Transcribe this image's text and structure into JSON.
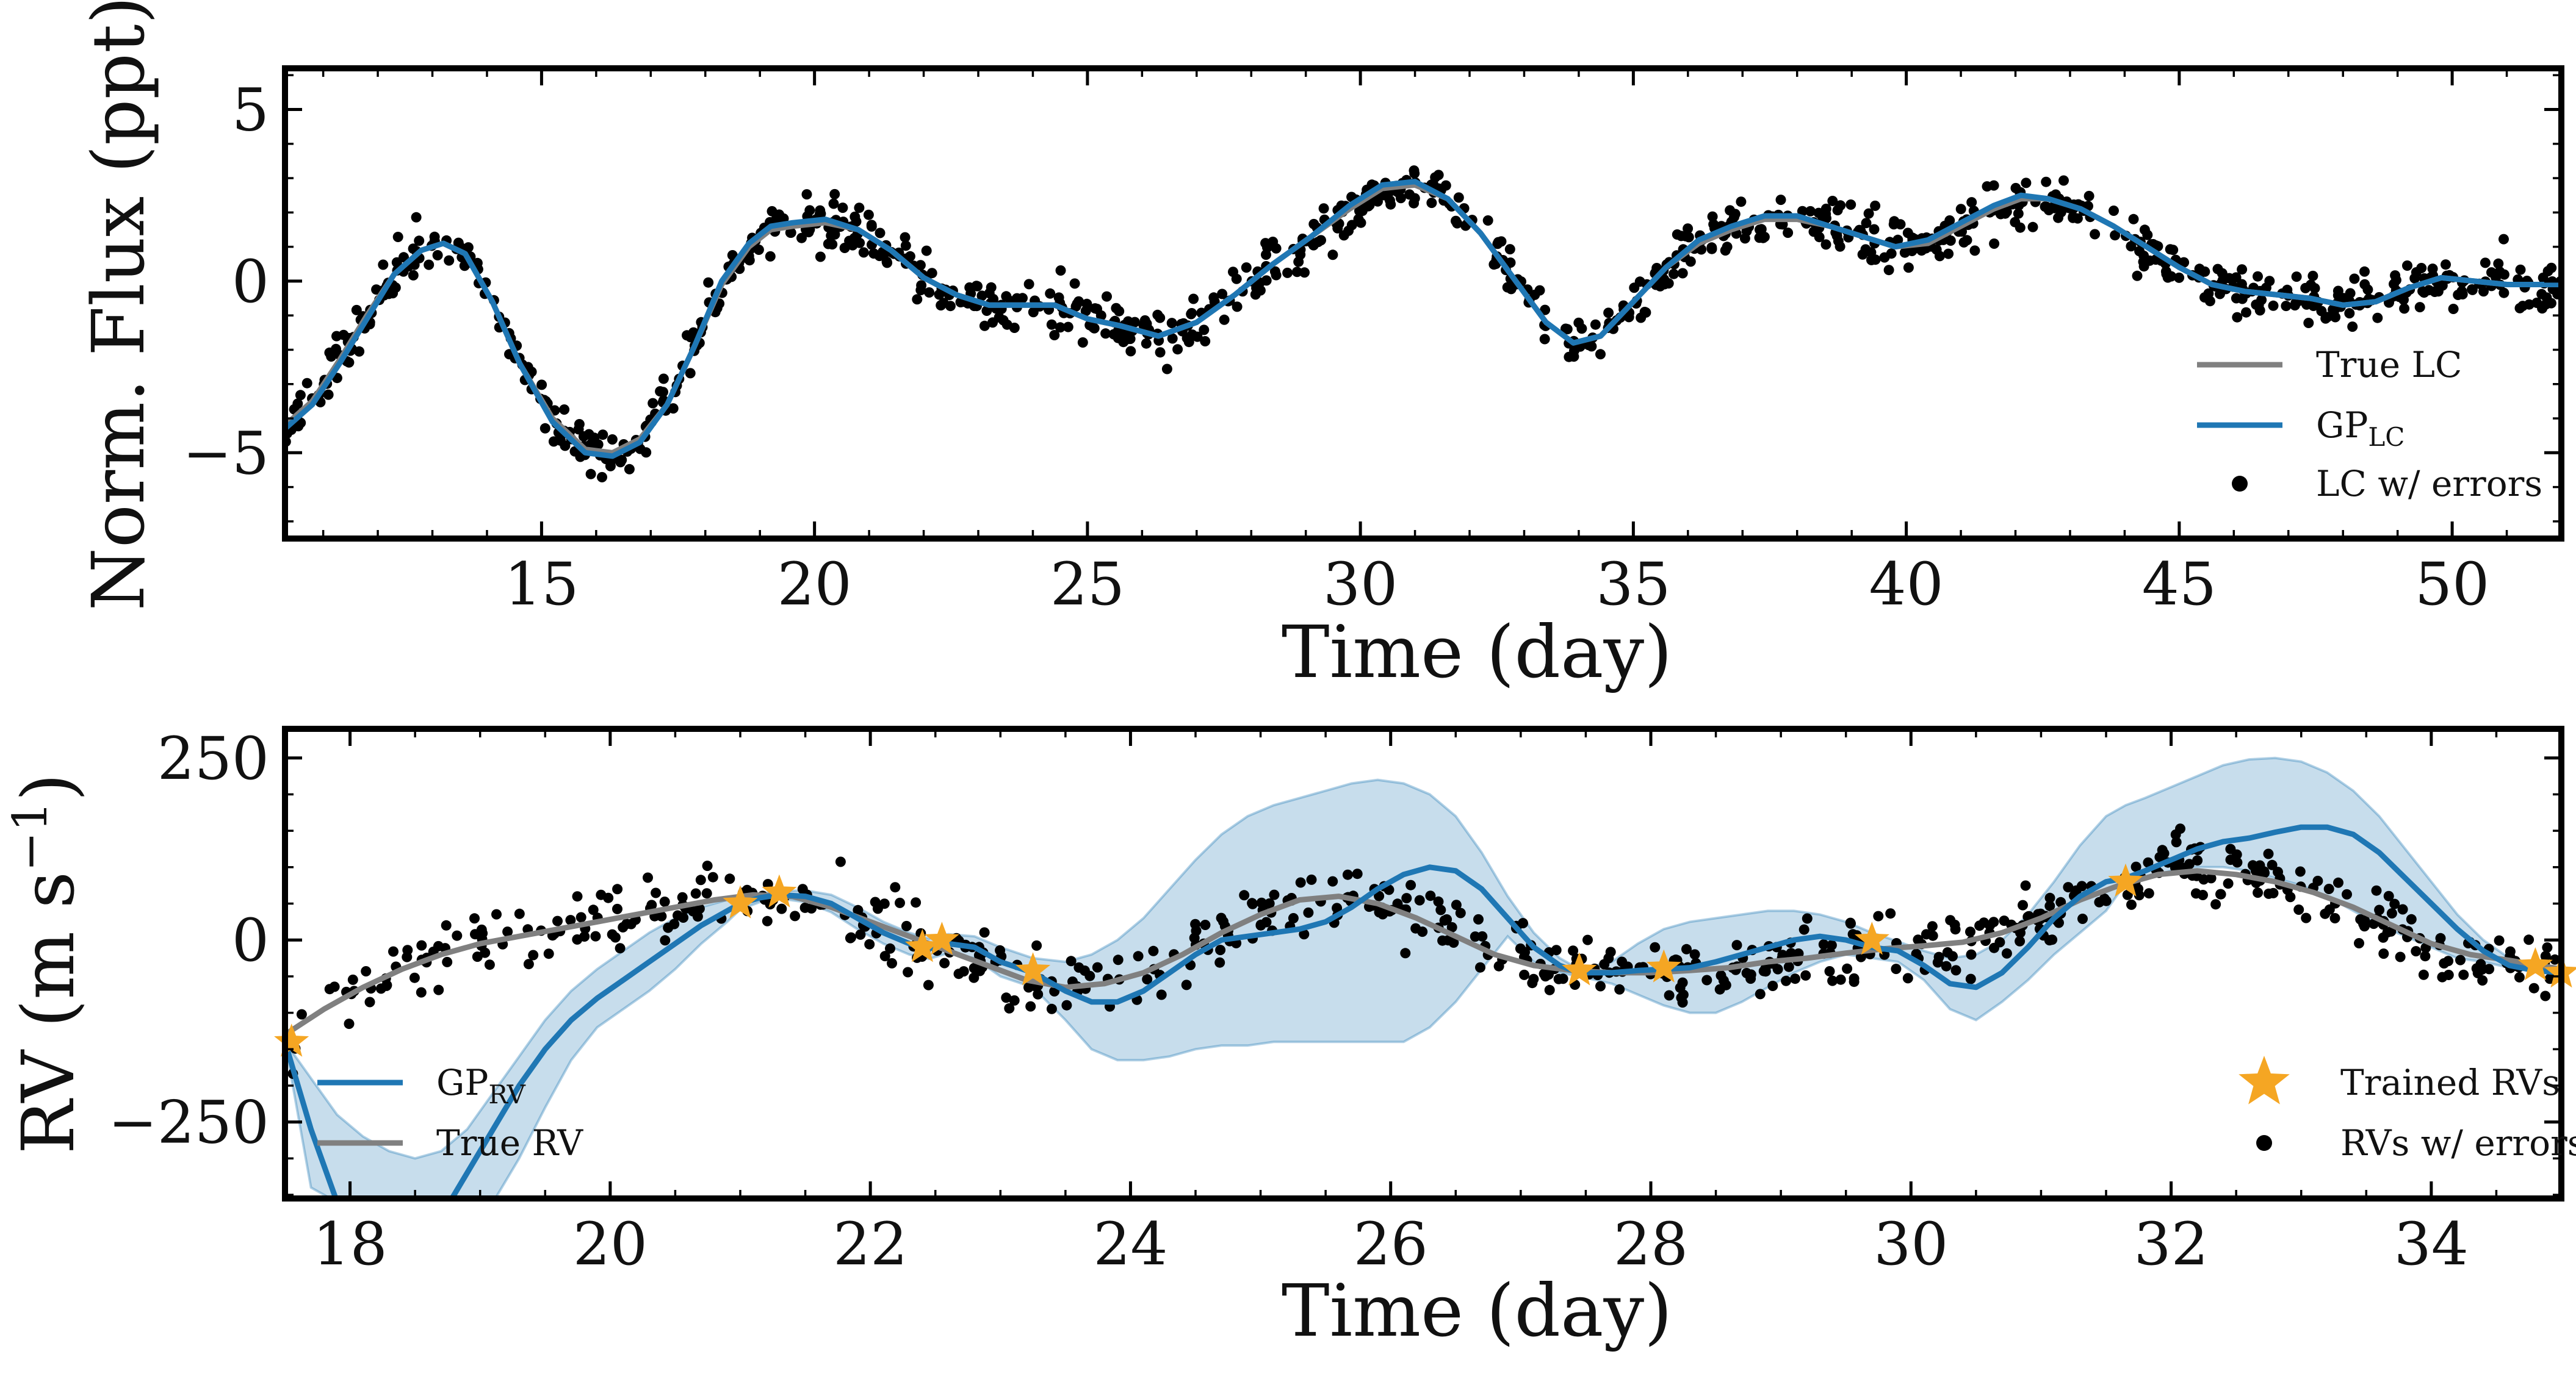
{
  "chart_data": [
    {
      "type": "line",
      "xlabel": "Time (day)",
      "ylabel": "Norm. Flux (ppt)",
      "xlim": [
        10.3,
        52
      ],
      "ylim": [
        -7.5,
        6.2
      ],
      "xticks": [
        "15",
        "20",
        "25",
        "30",
        "35",
        "40",
        "45",
        "50"
      ],
      "yticks": [
        "−5",
        "0",
        "5"
      ],
      "grid": false,
      "legend": "lower-right",
      "series": [
        {
          "name": "True LC",
          "color": "#808080",
          "x": [
            10.3,
            10.8,
            11.3,
            11.8,
            12.3,
            12.8,
            13.2,
            13.6,
            14.1,
            14.6,
            15.2,
            15.8,
            16.3,
            16.8,
            17.3,
            17.8,
            18.3,
            18.8,
            19.2,
            19.6,
            20.2,
            20.8,
            21.4,
            22.0,
            22.6,
            23.2,
            23.8,
            24.4,
            25.0,
            25.6,
            26.3,
            27.0,
            27.7,
            28.4,
            29.1,
            29.8,
            30.4,
            31.0,
            31.6,
            32.2,
            32.8,
            33.4,
            33.9,
            34.4,
            35.0,
            35.6,
            36.2,
            36.8,
            37.4,
            38.0,
            38.6,
            39.2,
            39.8,
            40.4,
            41.0,
            41.6,
            42.1,
            42.6,
            43.2,
            43.8,
            44.4,
            45.0,
            45.6,
            46.2,
            46.8,
            47.4,
            48.0,
            48.6,
            49.2,
            49.8,
            50.4,
            51.0,
            51.6,
            52.0
          ],
          "y": [
            -4.2,
            -3.5,
            -2.3,
            -1.0,
            0.2,
            0.9,
            1.1,
            0.8,
            -0.6,
            -2.4,
            -4.0,
            -4.9,
            -5.0,
            -4.6,
            -3.6,
            -1.9,
            -0.1,
            1.0,
            1.5,
            1.6,
            1.7,
            1.5,
            0.9,
            0.1,
            -0.4,
            -0.7,
            -0.7,
            -0.7,
            -1.1,
            -1.3,
            -1.6,
            -1.2,
            -0.4,
            0.5,
            1.3,
            2.1,
            2.7,
            2.8,
            2.4,
            1.4,
            0.1,
            -1.2,
            -1.8,
            -1.6,
            -0.6,
            0.4,
            1.1,
            1.5,
            1.8,
            1.8,
            1.6,
            1.3,
            1.0,
            1.1,
            1.6,
            2.1,
            2.4,
            2.4,
            2.1,
            1.6,
            1.0,
            0.4,
            -0.1,
            -0.3,
            -0.4,
            -0.5,
            -0.7,
            -0.6,
            -0.2,
            0.1,
            0.0,
            -0.1,
            -0.1,
            -0.1
          ]
        },
        {
          "name": "GPLC",
          "color": "#1f77b4",
          "x": [
            10.3,
            10.8,
            11.3,
            11.8,
            12.3,
            12.8,
            13.2,
            13.6,
            14.1,
            14.6,
            15.2,
            15.8,
            16.3,
            16.8,
            17.3,
            17.8,
            18.3,
            18.8,
            19.2,
            19.6,
            20.2,
            20.8,
            21.4,
            22.0,
            22.6,
            23.2,
            23.8,
            24.4,
            25.0,
            25.6,
            26.3,
            27.0,
            27.7,
            28.4,
            29.1,
            29.8,
            30.4,
            31.0,
            31.6,
            32.2,
            32.8,
            33.4,
            33.9,
            34.4,
            35.0,
            35.6,
            36.2,
            36.8,
            37.4,
            38.0,
            38.6,
            39.2,
            39.8,
            40.4,
            41.0,
            41.6,
            42.1,
            42.6,
            43.2,
            43.8,
            44.4,
            45.0,
            45.6,
            46.2,
            46.8,
            47.4,
            48.0,
            48.6,
            49.2,
            49.8,
            50.4,
            51.0,
            51.6,
            52.0
          ],
          "y": [
            -4.3,
            -3.6,
            -2.4,
            -1.1,
            0.2,
            0.9,
            1.1,
            0.8,
            -0.6,
            -2.4,
            -4.1,
            -5.0,
            -5.1,
            -4.7,
            -3.6,
            -1.9,
            0.0,
            1.1,
            1.6,
            1.7,
            1.8,
            1.5,
            0.9,
            0.1,
            -0.4,
            -0.7,
            -0.7,
            -0.7,
            -1.1,
            -1.3,
            -1.6,
            -1.2,
            -0.4,
            0.5,
            1.3,
            2.2,
            2.8,
            2.9,
            2.4,
            1.4,
            0.1,
            -1.2,
            -1.8,
            -1.6,
            -0.6,
            0.4,
            1.2,
            1.6,
            1.9,
            1.9,
            1.6,
            1.3,
            1.0,
            1.2,
            1.7,
            2.2,
            2.5,
            2.4,
            2.1,
            1.6,
            1.0,
            0.4,
            -0.1,
            -0.3,
            -0.4,
            -0.5,
            -0.7,
            -0.6,
            -0.2,
            0.1,
            0.0,
            -0.1,
            -0.1,
            -0.1
          ]
        },
        {
          "name": "LC w/ errors",
          "type": "scatter",
          "color": "#000000",
          "note": "dense scatter of ~1000 points following the true LC with ~0.35 ppt noise"
        }
      ],
      "legend_entries": [
        {
          "label": "True LC",
          "color": "#808080",
          "kind": "line"
        },
        {
          "label": "GP",
          "sub": "LC",
          "color": "#1f77b4",
          "kind": "line"
        },
        {
          "label": "LC w/ errors",
          "color": "#000000",
          "kind": "dot"
        }
      ]
    },
    {
      "type": "line",
      "xlabel": "Time (day)",
      "ylabel": "RV (m s",
      "ylabel_sup": "−1",
      "ylabel_end": ")",
      "xlim": [
        17.5,
        35.0
      ],
      "ylim": [
        -355,
        290
      ],
      "xticks": [
        "18",
        "20",
        "22",
        "24",
        "26",
        "28",
        "30",
        "32",
        "34"
      ],
      "yticks": [
        "−250",
        "0",
        "250"
      ],
      "grid": false,
      "legend": [
        "lower-left",
        "lower-right"
      ],
      "series": [
        {
          "name": "True RV",
          "color": "#808080",
          "x": [
            17.5,
            17.8,
            18.1,
            18.4,
            18.7,
            19.0,
            19.3,
            19.6,
            19.9,
            20.2,
            20.5,
            20.8,
            21.1,
            21.4,
            21.7,
            22.0,
            22.3,
            22.6,
            22.9,
            23.2,
            23.5,
            23.8,
            24.1,
            24.4,
            24.7,
            25.0,
            25.3,
            25.6,
            25.9,
            26.2,
            26.5,
            26.8,
            27.1,
            27.4,
            27.7,
            28.0,
            28.3,
            28.6,
            28.9,
            29.2,
            29.5,
            29.8,
            30.1,
            30.4,
            30.7,
            31.0,
            31.3,
            31.6,
            31.9,
            32.2,
            32.5,
            32.8,
            33.1,
            33.4,
            33.7,
            34.0,
            34.3,
            34.6,
            35.0
          ],
          "y": [
            -130,
            -95,
            -65,
            -40,
            -20,
            -5,
            5,
            15,
            25,
            35,
            45,
            55,
            62,
            60,
            45,
            25,
            5,
            -15,
            -35,
            -55,
            -65,
            -60,
            -45,
            -20,
            10,
            35,
            55,
            60,
            50,
            30,
            5,
            -20,
            -35,
            -42,
            -45,
            -45,
            -42,
            -38,
            -30,
            -25,
            -18,
            -12,
            -8,
            -3,
            10,
            30,
            55,
            75,
            90,
            95,
            90,
            80,
            65,
            45,
            20,
            -5,
            -20,
            -28,
            -40
          ]
        },
        {
          "name": "GPRV",
          "color": "#1f77b4",
          "x": [
            17.5,
            17.7,
            17.9,
            18.1,
            18.3,
            18.5,
            18.7,
            18.9,
            19.1,
            19.3,
            19.5,
            19.7,
            19.9,
            20.1,
            20.3,
            20.5,
            20.7,
            20.9,
            21.0,
            21.15,
            21.3,
            21.5,
            21.7,
            21.9,
            22.1,
            22.3,
            22.45,
            22.6,
            22.8,
            23.0,
            23.25,
            23.5,
            23.7,
            23.9,
            24.1,
            24.3,
            24.5,
            24.7,
            24.9,
            25.1,
            25.3,
            25.5,
            25.7,
            25.9,
            26.1,
            26.3,
            26.5,
            26.7,
            26.9,
            27.1,
            27.3,
            27.45,
            27.7,
            27.9,
            28.1,
            28.3,
            28.5,
            28.7,
            28.9,
            29.1,
            29.3,
            29.5,
            29.7,
            29.9,
            30.1,
            30.3,
            30.5,
            30.7,
            30.9,
            31.1,
            31.3,
            31.5,
            31.65,
            31.8,
            32.0,
            32.2,
            32.4,
            32.6,
            32.8,
            33.0,
            33.2,
            33.4,
            33.6,
            33.8,
            34.0,
            34.2,
            34.4,
            34.6,
            34.8,
            35.0
          ],
          "y": [
            -140,
            -260,
            -360,
            -420,
            -440,
            -420,
            -380,
            -320,
            -260,
            -200,
            -150,
            -110,
            -80,
            -55,
            -30,
            -5,
            20,
            40,
            50,
            58,
            62,
            60,
            50,
            30,
            10,
            -5,
            -12,
            -5,
            -10,
            -30,
            -45,
            -70,
            -85,
            -85,
            -70,
            -45,
            -20,
            0,
            5,
            10,
            15,
            25,
            45,
            70,
            90,
            100,
            95,
            70,
            30,
            -10,
            -35,
            -45,
            -45,
            -42,
            -40,
            -38,
            -30,
            -20,
            -10,
            0,
            5,
            0,
            -10,
            -15,
            -35,
            -60,
            -65,
            -45,
            -10,
            30,
            60,
            80,
            85,
            95,
            110,
            125,
            135,
            140,
            148,
            155,
            155,
            145,
            120,
            85,
            50,
            15,
            -15,
            -35,
            -42,
            -45
          ]
        },
        {
          "name": "GP 1σ band",
          "color": "#1f77b4",
          "x": [
            17.5,
            17.7,
            17.9,
            18.1,
            18.3,
            18.5,
            18.7,
            18.9,
            19.1,
            19.3,
            19.5,
            19.7,
            19.9,
            20.1,
            20.3,
            20.5,
            20.7,
            20.9,
            21.0,
            21.15,
            21.3,
            21.5,
            21.7,
            21.9,
            22.1,
            22.3,
            22.45,
            22.6,
            22.8,
            23.0,
            23.25,
            23.5,
            23.7,
            23.9,
            24.1,
            24.3,
            24.5,
            24.7,
            24.9,
            25.1,
            25.3,
            25.5,
            25.7,
            25.9,
            26.1,
            26.3,
            26.5,
            26.7,
            26.9,
            27.1,
            27.3,
            27.45,
            27.7,
            27.9,
            28.1,
            28.3,
            28.5,
            28.7,
            28.9,
            29.1,
            29.3,
            29.5,
            29.7,
            29.9,
            30.1,
            30.3,
            30.5,
            30.7,
            30.9,
            31.1,
            31.3,
            31.5,
            31.65,
            31.8,
            32.0,
            32.2,
            32.4,
            32.6,
            32.8,
            33.0,
            33.2,
            33.4,
            33.6,
            33.8,
            34.0,
            34.2,
            34.4,
            34.6,
            34.8,
            35.0
          ],
          "upper": [
            -140,
            -190,
            -240,
            -270,
            -290,
            -300,
            -290,
            -260,
            -210,
            -160,
            -110,
            -70,
            -40,
            -15,
            10,
            30,
            45,
            55,
            58,
            64,
            67,
            68,
            62,
            45,
            25,
            10,
            2,
            8,
            5,
            -10,
            -25,
            -30,
            -20,
            0,
            30,
            70,
            110,
            145,
            170,
            185,
            195,
            205,
            215,
            220,
            215,
            200,
            170,
            120,
            60,
            10,
            -25,
            -40,
            -30,
            -5,
            15,
            25,
            30,
            35,
            40,
            40,
            35,
            25,
            10,
            -2,
            -15,
            -25,
            -20,
            0,
            35,
            80,
            130,
            170,
            185,
            195,
            210,
            225,
            240,
            248,
            250,
            245,
            230,
            205,
            170,
            125,
            80,
            35,
            0,
            -25,
            -35,
            -40
          ],
          "lower": [
            -140,
            -340,
            -360,
            -360,
            -360,
            -360,
            -360,
            -360,
            -360,
            -300,
            -230,
            -165,
            -120,
            -95,
            -70,
            -40,
            -5,
            25,
            42,
            52,
            57,
            52,
            38,
            15,
            -5,
            -20,
            -26,
            -18,
            -25,
            -50,
            -65,
            -110,
            -150,
            -165,
            -165,
            -160,
            -150,
            -145,
            -145,
            -140,
            -140,
            -140,
            -140,
            -140,
            -140,
            -120,
            -85,
            -40,
            5,
            -30,
            -45,
            -50,
            -60,
            -75,
            -90,
            -100,
            -100,
            -85,
            -65,
            -45,
            -30,
            -20,
            -25,
            -30,
            -55,
            -95,
            -110,
            -85,
            -55,
            -20,
            10,
            40,
            78,
            85,
            95,
            100,
            100,
            95,
            85,
            75,
            60,
            40,
            20,
            5,
            -10,
            -25,
            -30,
            -38,
            -44,
            -48
          ]
        },
        {
          "name": "RVs w/ errors",
          "type": "scatter",
          "color": "#000000",
          "note": "dense scatter of ~650 points following the true RV with ~20 m/s noise"
        },
        {
          "name": "Trained RVs",
          "type": "scatter",
          "marker": "star",
          "color": "#f5a623",
          "x": [
            17.55,
            21.0,
            21.3,
            22.4,
            22.55,
            23.25,
            27.45,
            28.1,
            29.7,
            31.65,
            34.8,
            35.0
          ],
          "y": [
            -140,
            50,
            65,
            -10,
            0,
            -42,
            -42,
            -38,
            0,
            80,
            -35,
            -45
          ]
        }
      ],
      "legend_entries": [
        {
          "label": "GP",
          "sub": "RV",
          "color": "#1f77b4",
          "kind": "line"
        },
        {
          "label": "True RV",
          "color": "#808080",
          "kind": "line"
        },
        {
          "label": "Trained RVs",
          "color": "#f5a623",
          "kind": "star"
        },
        {
          "label": "RVs w/ errors",
          "color": "#000000",
          "kind": "dot"
        }
      ]
    }
  ]
}
